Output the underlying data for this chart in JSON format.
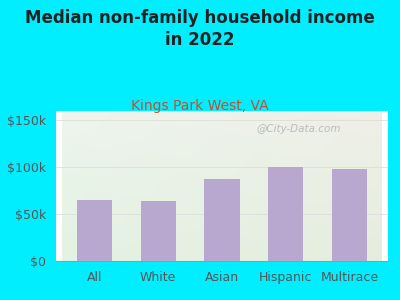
{
  "title": "Median non-family household income\nin 2022",
  "subtitle": "Kings Park West, VA",
  "categories": [
    "All",
    "White",
    "Asian",
    "Hispanic",
    "Multirace"
  ],
  "values": [
    65000,
    64000,
    87000,
    100000,
    98000
  ],
  "bar_color": "#b8a8d0",
  "background_outer": "#00eeff",
  "title_color": "#222222",
  "subtitle_color": "#c05030",
  "axis_label_color": "#555555",
  "tick_label_color": "#555555",
  "ylim": [
    0,
    160000
  ],
  "yticks": [
    0,
    50000,
    100000,
    150000
  ],
  "ytick_labels": [
    "$0",
    "$50k",
    "$100k",
    "$150k"
  ],
  "watermark": "@City-Data.com",
  "title_fontsize": 12,
  "subtitle_fontsize": 10,
  "tick_fontsize": 9,
  "grid_color": "#dddddd"
}
